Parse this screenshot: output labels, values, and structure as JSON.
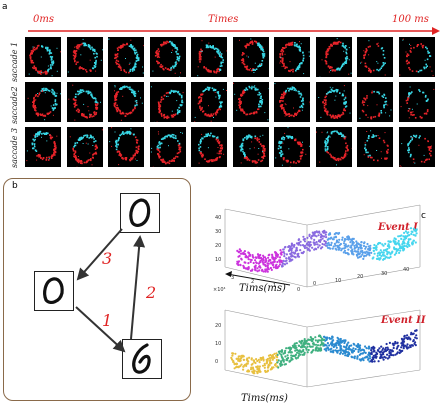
{
  "panel_a": {
    "label": "a",
    "time_start": "0ms",
    "time_axis": "Times",
    "time_end": "100 ms",
    "rows": [
      "saccade 1",
      "saccade2",
      "saccade 3"
    ],
    "columns": 10,
    "colors": {
      "red": "#e8242a",
      "cyan": "#39d8e6",
      "background": "#000000",
      "arrow": "#e02424"
    }
  },
  "panel_b": {
    "label": "b",
    "edge_labels": [
      "3",
      "2",
      "1"
    ],
    "border_color": "#8a6a4a"
  },
  "panel_c": {
    "label": "c",
    "event1": {
      "title": "Event I",
      "y_ticks": [
        "40",
        "30",
        "20",
        "10"
      ],
      "x_ticks": [
        "3",
        "2",
        "1",
        "0"
      ],
      "x_exponent": "×10⁴",
      "z_ticks": [
        "0",
        "10",
        "20",
        "30",
        "40"
      ],
      "axis_label": "Tims(ms)",
      "colors": [
        "#cc33dd",
        "#8a6ae0",
        "#5aa0ea",
        "#46d6ee"
      ]
    },
    "event2": {
      "title": "Event II",
      "z_ticks": [
        "20",
        "10",
        "0"
      ],
      "axis_label": "Tims(ms)",
      "colors": [
        "#e8c040",
        "#40b080",
        "#2a8ad0",
        "#2030a0"
      ]
    }
  }
}
